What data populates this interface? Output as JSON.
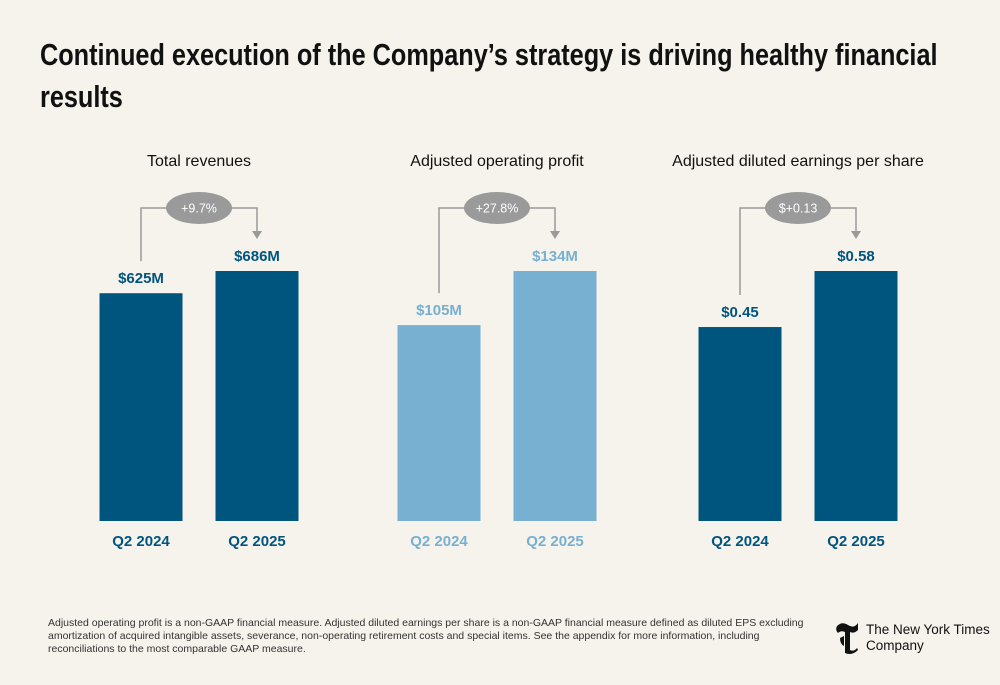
{
  "title": "Continued execution of the Company’s strategy is driving healthy financial results",
  "chart_data": [
    {
      "type": "bar",
      "title": "Total revenues",
      "categories": [
        "Q2 2024",
        "Q2 2025"
      ],
      "values": [
        625,
        686
      ],
      "value_labels": [
        "$625M",
        "$686M"
      ],
      "annotation": "+9.7%",
      "color": "#00557f"
    },
    {
      "type": "bar",
      "title": "Adjusted operating profit",
      "categories": [
        "Q2 2024",
        "Q2 2025"
      ],
      "values": [
        105,
        134
      ],
      "value_labels": [
        "$105M",
        "$134M"
      ],
      "annotation": "+27.8%",
      "color": "#78b0d1"
    },
    {
      "type": "bar",
      "title": "Adjusted diluted earnings per share",
      "categories": [
        "Q2 2024",
        "Q2 2025"
      ],
      "values": [
        0.45,
        0.58
      ],
      "value_labels": [
        "$0.45",
        "$0.58"
      ],
      "annotation": "$+0.13",
      "color": "#00557f"
    }
  ],
  "footnote": "Adjusted operating profit is a non-GAAP financial measure. Adjusted diluted earnings per share is a non-GAAP financial measure defined as diluted EPS excluding amortization of acquired intangible assets, severance, non-operating retirement costs and special items. See the appendix for more information, including reconciliations to the most comparable GAAP measure.",
  "logo": [
    "The New York Times",
    "Company"
  ]
}
